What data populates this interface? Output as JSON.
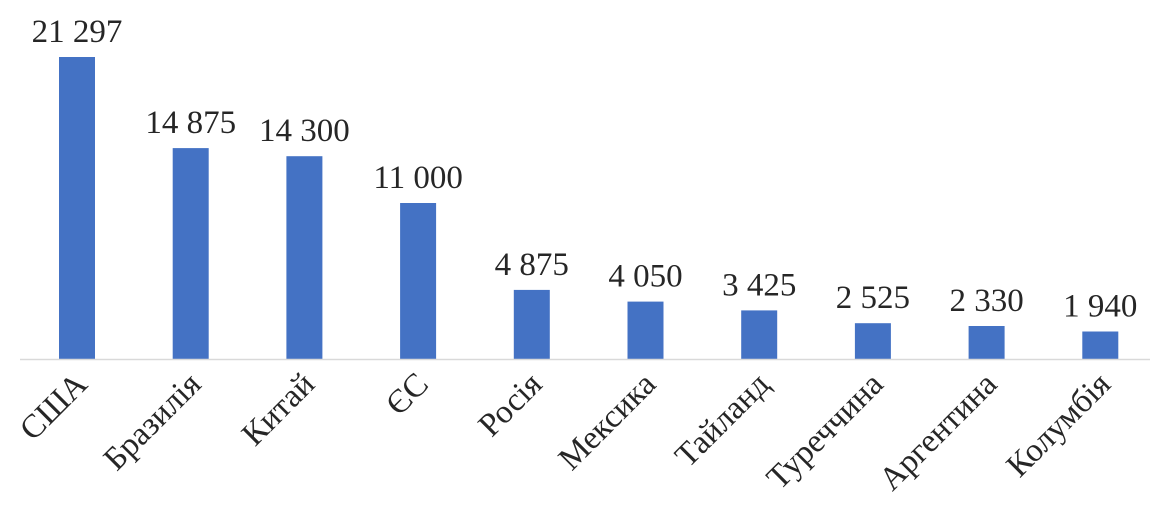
{
  "chart_data": {
    "type": "bar",
    "title": "",
    "xlabel": "",
    "ylabel": "",
    "categories": [
      "США",
      "Бразилія",
      "Китай",
      "ЄС",
      "Росія",
      "Мексика",
      "Тайланд",
      "Туреччина",
      "Аргентина",
      "Колумбія"
    ],
    "values": [
      21297,
      14875,
      14300,
      11000,
      4875,
      4050,
      3425,
      2525,
      2330,
      1940
    ],
    "value_labels": [
      "21 297",
      "14 875",
      "14 300",
      "11 000",
      "4 875",
      "4 050",
      "3 425",
      "2 525",
      "2 330",
      "1 940"
    ],
    "ylim": [
      0,
      21297
    ],
    "grid": false,
    "legend": "none",
    "colors": {
      "bar": "#4472C4",
      "axis": "#D9D9D9",
      "text": "#262626"
    }
  }
}
